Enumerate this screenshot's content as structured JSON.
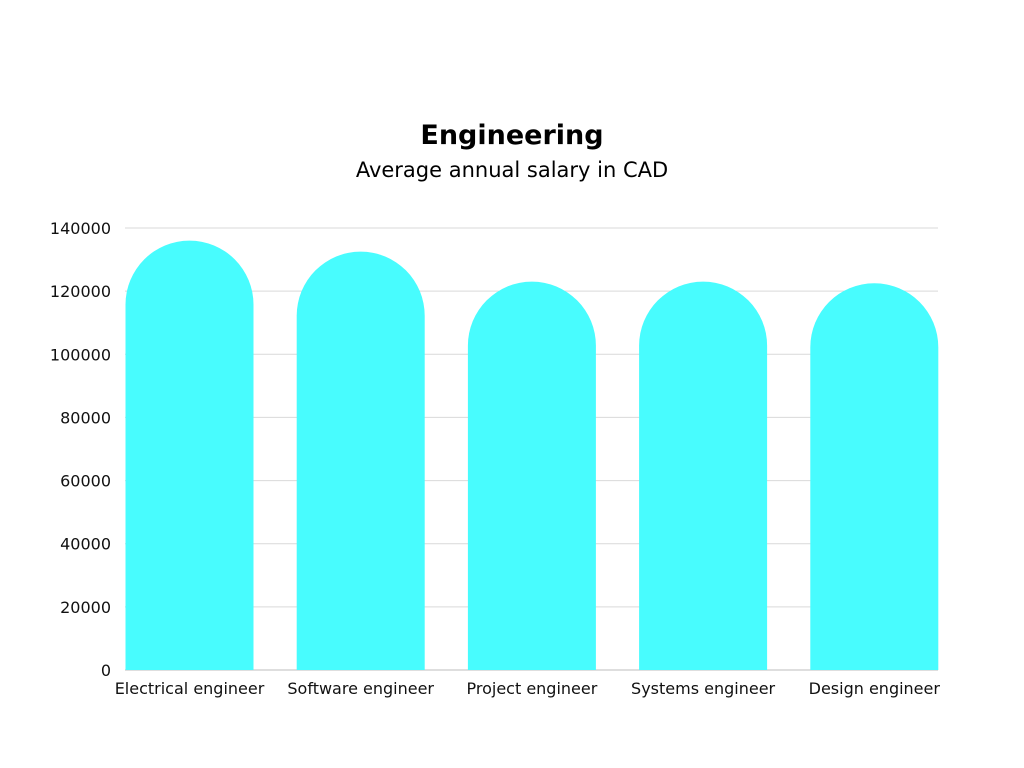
{
  "chart_data": {
    "type": "bar",
    "title": "Engineering",
    "subtitle": "Average annual salary in CAD",
    "categories": [
      "Electrical engineer",
      "Software engineer",
      "Project engineer",
      "Systems engineer",
      "Design engineer"
    ],
    "values": [
      136000,
      132500,
      123000,
      123000,
      122500
    ],
    "ylim": [
      0,
      140000
    ],
    "yticks": [
      "0",
      "20000",
      "40000",
      "60000",
      "80000",
      "100000",
      "120000",
      "140000"
    ],
    "xlabel": "",
    "ylabel": "",
    "grid": true,
    "bar_color": "#48FCFE",
    "grid_color": "#d9d9d9"
  }
}
